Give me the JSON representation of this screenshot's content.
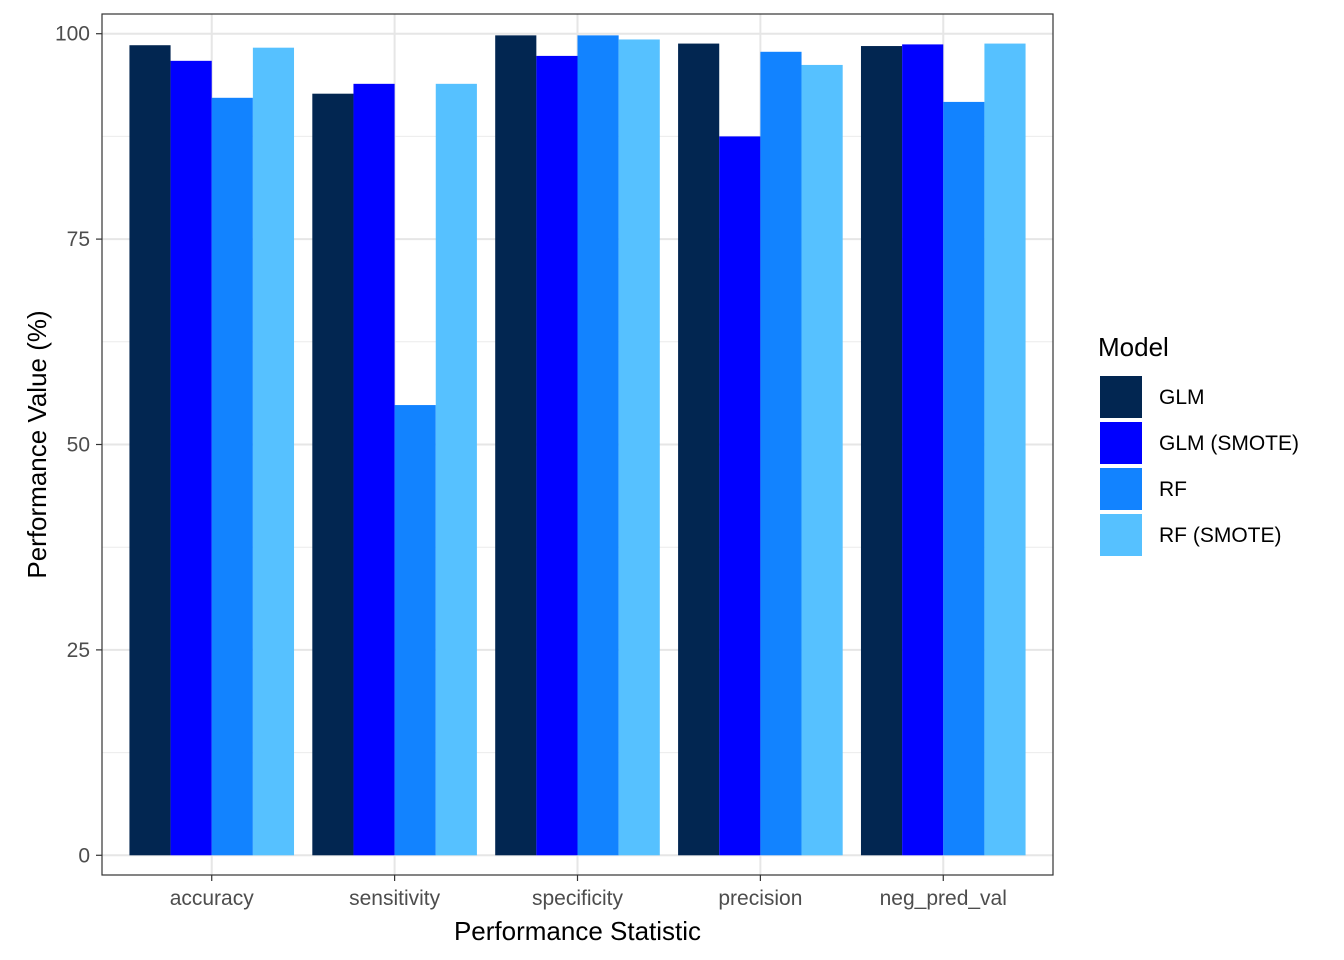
{
  "chart_data": {
    "type": "bar",
    "title": "",
    "xlabel": "Performance Statistic",
    "ylabel": "Performance Value (%)",
    "categories": [
      "accuracy",
      "sensitivity",
      "specificity",
      "precision",
      "neg_pred_val"
    ],
    "ylim": [
      -2.4,
      102.4
    ],
    "yticks": [
      0,
      25,
      50,
      75,
      100
    ],
    "grid": true,
    "legend": {
      "title": "Model",
      "position": "right"
    },
    "series": [
      {
        "name": "GLM",
        "color": "#022651",
        "values": [
          98.6,
          92.7,
          99.8,
          98.8,
          98.5
        ]
      },
      {
        "name": "GLM (SMOTE)",
        "color": "#0000ff",
        "values": [
          96.7,
          93.9,
          97.3,
          87.5,
          98.7
        ]
      },
      {
        "name": "RF",
        "color": "#1283ff",
        "values": [
          92.2,
          54.8,
          99.8,
          97.8,
          91.7
        ]
      },
      {
        "name": "RF (SMOTE)",
        "color": "#56c1ff",
        "values": [
          98.3,
          93.9,
          99.3,
          96.2,
          98.8
        ]
      }
    ]
  }
}
